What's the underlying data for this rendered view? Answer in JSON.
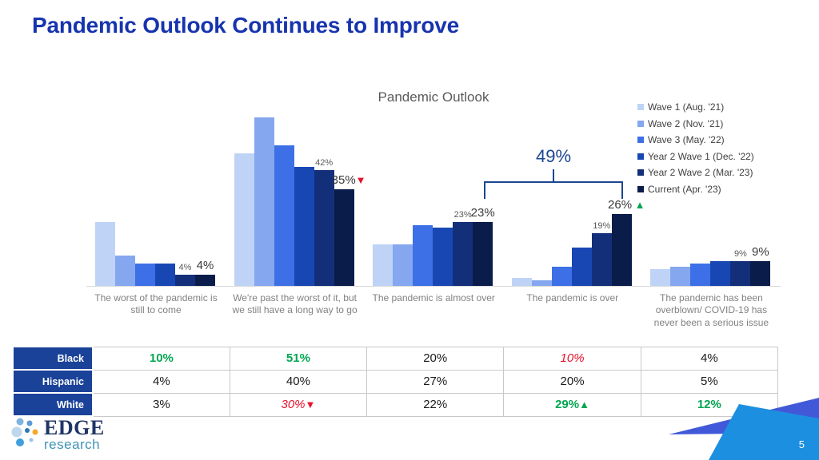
{
  "slide": {
    "title": "Pandemic Outlook Continues to Improve",
    "page_number": "5"
  },
  "chart_data": {
    "type": "bar",
    "title": "Pandemic Outlook",
    "xlabel": "",
    "ylabel": "",
    "ylim": [
      0,
      65
    ],
    "grid": false,
    "legend_position": "right",
    "categories": [
      "The worst of the pandemic is still to come",
      "We're past the worst of it, but we still have a long way to go",
      "The pandemic is almost over",
      "The pandemic is over",
      "The pandemic has been overblown/ COVID-19 has never been a serious issue"
    ],
    "series": [
      {
        "name": "Wave 1 (Aug. '21)",
        "color": "#BFD3F7",
        "values": [
          23,
          48,
          15,
          3,
          6
        ]
      },
      {
        "name": "Wave 2 (Nov. '21)",
        "color": "#84A7EF",
        "values": [
          11,
          61,
          15,
          2,
          7
        ]
      },
      {
        "name": "Wave 3 (May. '22)",
        "color": "#3D70E6",
        "values": [
          8,
          51,
          22,
          7,
          8
        ]
      },
      {
        "name": "Year 2 Wave 1 (Dec. '22)",
        "color": "#1847B4",
        "values": [
          8,
          43,
          21,
          14,
          9
        ]
      },
      {
        "name": "Year 2 Wave 2 (Mar. '23)",
        "color": "#142F79",
        "values": [
          4,
          42,
          23,
          19,
          9
        ]
      },
      {
        "name": "Current (Apr. '23)",
        "color": "#0A1C49",
        "values": [
          4,
          35,
          23,
          26,
          9
        ]
      }
    ],
    "data_labels": {
      "prev_wave": [
        "4%",
        "42%",
        "23%",
        "19%",
        "9%"
      ],
      "current": [
        "4%",
        "35%",
        "23%",
        "26%",
        "9%"
      ],
      "current_markers": [
        null,
        "down",
        null,
        "up",
        null
      ]
    },
    "annotation": {
      "bracket_label": "49%"
    }
  },
  "table": {
    "row_headers": [
      "Black",
      "Hispanic",
      "White"
    ],
    "rows": [
      [
        {
          "text": "10%",
          "style": "green"
        },
        {
          "text": "51%",
          "style": "green"
        },
        {
          "text": "20%"
        },
        {
          "text": "10%",
          "style": "red-italic"
        },
        {
          "text": "4%"
        }
      ],
      [
        {
          "text": "4%"
        },
        {
          "text": "40%"
        },
        {
          "text": "27%"
        },
        {
          "text": "20%"
        },
        {
          "text": "5%"
        }
      ],
      [
        {
          "text": "3%"
        },
        {
          "text": "30%",
          "style": "red-italic",
          "marker": "down"
        },
        {
          "text": "22%"
        },
        {
          "text": "29%",
          "style": "green",
          "marker": "up"
        },
        {
          "text": "12%",
          "style": "green"
        }
      ]
    ]
  },
  "logo": {
    "line1": "EDGE",
    "line2": "research"
  },
  "colors": {
    "title_blue": "#1734AE",
    "bracket_blue": "#1B4694",
    "green": "#00A651",
    "red": "#E8112A",
    "table_header_blue": "#1A4299"
  }
}
